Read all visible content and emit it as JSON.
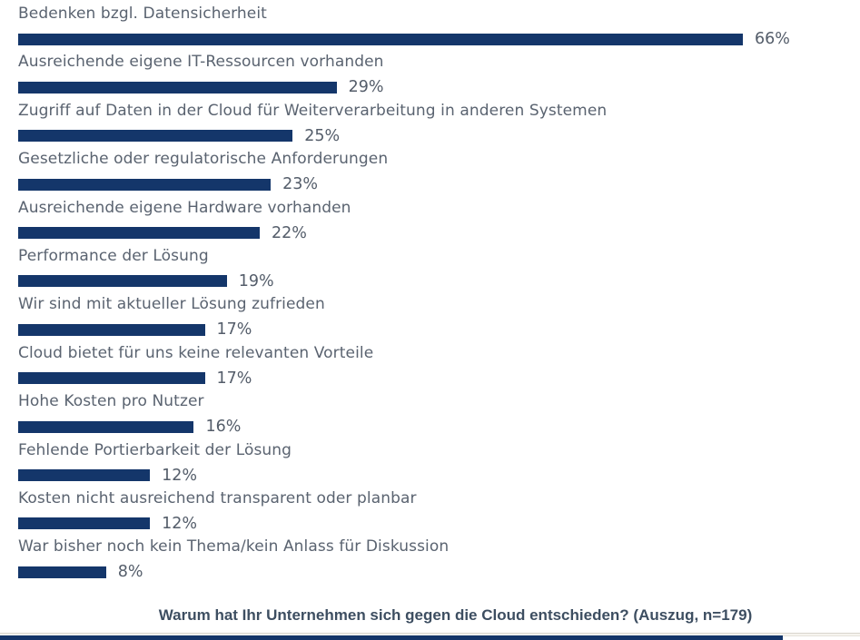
{
  "chart_data": {
    "type": "bar",
    "orientation": "horizontal",
    "unit": "%",
    "categories": [
      "Bedenken bzgl. Datensicherheit",
      "Ausreichende eigene IT-Ressourcen vorhanden",
      "Zugriff auf Daten in der Cloud für Weiterverarbeitung in anderen Systemen",
      "Gesetzliche oder regulatorische Anforderungen",
      "Ausreichende eigene Hardware vorhanden",
      "Performance der Lösung",
      "Wir sind mit aktueller Lösung zufrieden",
      "Cloud bietet für uns keine relevanten Vorteile",
      "Hohe Kosten pro Nutzer",
      "Fehlende Portierbarkeit der Lösung",
      "Kosten nicht ausreichend transparent oder planbar",
      "War bisher noch kein Thema/kein Anlass für Diskussion"
    ],
    "values": [
      66,
      29,
      25,
      23,
      22,
      19,
      17,
      17,
      16,
      12,
      12,
      8
    ],
    "value_labels": [
      "66%",
      "29%",
      "25%",
      "23%",
      "22%",
      "19%",
      "17%",
      "17%",
      "16%",
      "12%",
      "12%",
      "8%"
    ],
    "title": "Warum hat Ihr Unternehmen sich gegen die Cloud entschieden? (Auszug, n=179)",
    "xlabel": "",
    "ylabel": "",
    "xlim": [
      0,
      66
    ],
    "grid": false,
    "legend": false,
    "data_labels_position": "right-of-bar",
    "bar_color": "#14366a",
    "label_color": "#5a6370",
    "title_color": "#3d4e61"
  }
}
